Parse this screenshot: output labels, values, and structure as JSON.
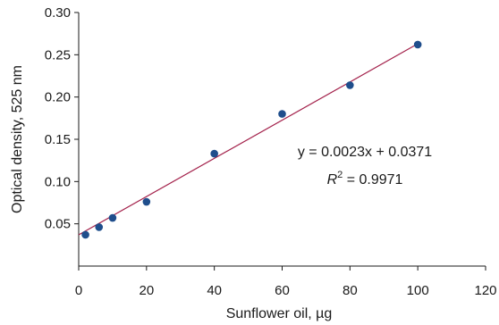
{
  "chart_data": {
    "type": "scatter",
    "xlabel": "Sunflower oil, µg",
    "ylabel": "Optical density, 525 nm",
    "xlim": [
      0,
      120
    ],
    "ylim": [
      0,
      0.3
    ],
    "x_ticks": [
      0,
      20,
      40,
      60,
      80,
      100,
      120
    ],
    "y_ticks": [
      0.05,
      0.1,
      0.15,
      0.2,
      0.25,
      0.3
    ],
    "x_tick_labels": [
      "0",
      "20",
      "40",
      "60",
      "80",
      "100",
      "120"
    ],
    "y_tick_labels": [
      "0.05",
      "0.10",
      "0.15",
      "0.20",
      "0.25",
      "0.30"
    ],
    "series": [
      {
        "points": [
          {
            "x": 2,
            "y": 0.037
          },
          {
            "x": 6,
            "y": 0.046
          },
          {
            "x": 10,
            "y": 0.057
          },
          {
            "x": 20,
            "y": 0.076
          },
          {
            "x": 40,
            "y": 0.133
          },
          {
            "x": 60,
            "y": 0.18
          },
          {
            "x": 80,
            "y": 0.214
          },
          {
            "x": 100,
            "y": 0.262
          }
        ]
      }
    ],
    "trendline": {
      "x_range": [
        0,
        100
      ],
      "y_range": [
        0.037,
        0.263
      ]
    },
    "annotation": {
      "equation": "y = 0.0023x + 0.0371",
      "r_squared_label": "R",
      "r_squared_exp": "2",
      "r_squared_value": " = 0.9971"
    },
    "colors": {
      "point": "#1f4e8c",
      "trendline": "#a3204a",
      "axis": "#1a1a1a"
    },
    "grid": false
  }
}
